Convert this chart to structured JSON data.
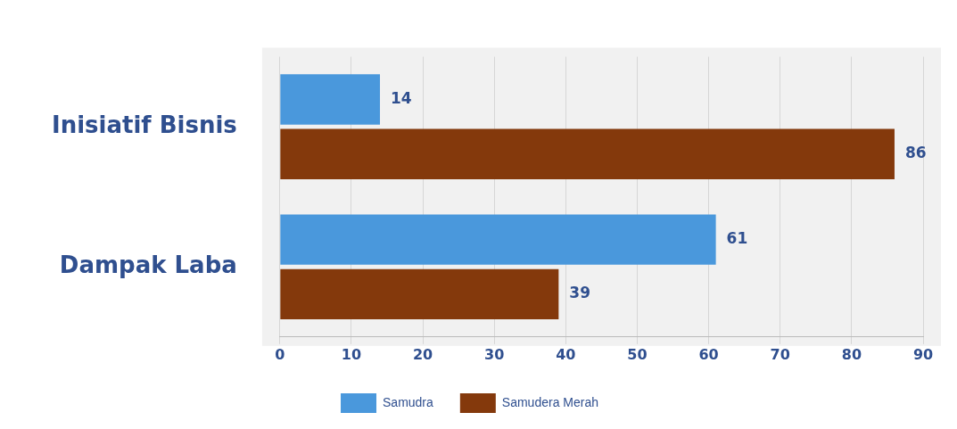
{
  "chart_data": {
    "type": "bar",
    "orientation": "horizontal",
    "categories": [
      "Inisiatif Bisnis",
      "Dampak Laba"
    ],
    "series": [
      {
        "name": "Samudra",
        "color": "#4a98dc",
        "values": [
          14,
          61
        ]
      },
      {
        "name": "Samudera Merah",
        "color": "#84390c",
        "values": [
          86,
          39
        ]
      }
    ],
    "xlim": [
      0,
      90
    ],
    "xticks": [
      0,
      10,
      20,
      30,
      40,
      50,
      60,
      70,
      80,
      90
    ],
    "grid": "x",
    "legend": "bottom",
    "data_labels": true
  }
}
